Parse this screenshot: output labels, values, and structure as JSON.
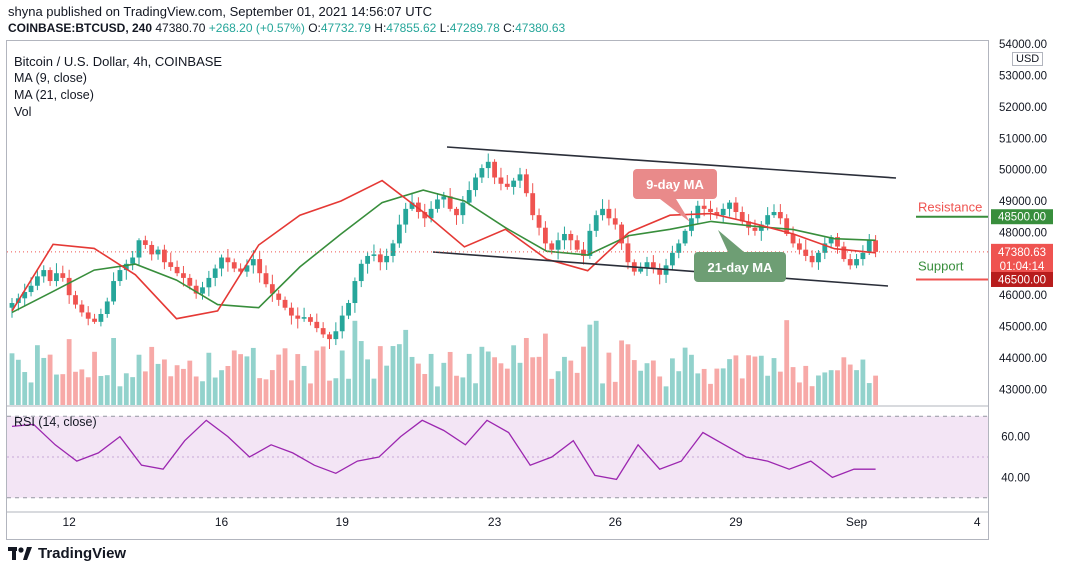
{
  "header": {
    "published": "shyna published on TradingView.com, September 01, 2021 14:56:07 UTC",
    "symbol": "COINBASE:BTCUSD, 240",
    "price": "47380.70",
    "change": "+268.20 (+0.57%)",
    "open_label": "O:",
    "open": "47732.79",
    "high_label": "H:",
    "high": "47855.62",
    "low_label": "L:",
    "low": "47289.78",
    "close_label": "C:",
    "close": "47380.63"
  },
  "legend": {
    "title": "Bitcoin / U.S. Dollar, 4h, COINBASE",
    "ma9": "MA (9, close)",
    "ma21": "MA (21, close)",
    "vol": "Vol",
    "rsi": "RSI (14, close)"
  },
  "currency": "USD",
  "annotations": {
    "ma9_label": "9-day MA",
    "ma21_label": "21-day MA",
    "resistance_label": "Resistance",
    "support_label": "Support",
    "resistance_level": "48500.00",
    "support_level": "46500.00",
    "last_price": "47380.63",
    "countdown": "01:04:14"
  },
  "footer": {
    "brand": "TradingView"
  },
  "colors": {
    "up": "#26a69a",
    "down": "#ef5350",
    "ma9": "#e53935",
    "ma21": "#388e3c",
    "rsi": "#9c27b0",
    "rsi_bg": "#f3e5f5"
  },
  "chart_data": {
    "type": "candlestick",
    "price_axis": {
      "ticks": [
        43000,
        44000,
        45000,
        46000,
        47000,
        48000,
        49000,
        50000,
        51000,
        52000,
        53000,
        54000
      ],
      "tick_labels": [
        "43000.00",
        "44000.00",
        "45000.00",
        "46000.00",
        "47000.00",
        "48000.00",
        "49000.00",
        "50000.00",
        "51000.00",
        "52000.00",
        "53000.00",
        "54000.00"
      ],
      "range": [
        42500,
        54100
      ]
    },
    "rsi_axis": {
      "ticks": [
        40,
        60
      ],
      "tick_labels": [
        "40.00",
        "60.00"
      ],
      "band": [
        30,
        70
      ],
      "range": [
        25,
        75
      ]
    },
    "time_axis": {
      "tick_labels": [
        "12",
        "16",
        "19",
        "23",
        "26",
        "29",
        "Sep",
        "4"
      ],
      "tick_bars": [
        9,
        33,
        52,
        76,
        95,
        114,
        133,
        152
      ]
    },
    "bars_per_day": 6,
    "closes": [
      45750,
      45900,
      46100,
      46300,
      46600,
      46800,
      46450,
      46700,
      46550,
      46000,
      45700,
      45450,
      45250,
      45150,
      45400,
      45800,
      46450,
      46800,
      47000,
      47200,
      47750,
      47600,
      47300,
      47450,
      47050,
      46900,
      46700,
      46550,
      46300,
      46050,
      46250,
      46550,
      46850,
      47200,
      47050,
      46850,
      46750,
      46950,
      47150,
      46700,
      46350,
      46050,
      45850,
      45600,
      45350,
      45250,
      45300,
      45150,
      44950,
      44750,
      44600,
      44850,
      45350,
      45750,
      46450,
      47000,
      47250,
      47300,
      47050,
      47250,
      47650,
      48250,
      48750,
      48950,
      48650,
      48450,
      48750,
      49050,
      49150,
      48750,
      48550,
      48950,
      49350,
      49750,
      50050,
      50250,
      49750,
      49550,
      49450,
      49650,
      49850,
      49250,
      48550,
      48150,
      47650,
      47450,
      47750,
      47950,
      47750,
      47450,
      47250,
      48050,
      48550,
      48750,
      48450,
      48250,
      47650,
      47050,
      46750,
      46850,
      47050,
      46850,
      46650,
      46950,
      47350,
      47650,
      48050,
      48450,
      48850,
      48750,
      48650,
      48550,
      48750,
      48950,
      48650,
      48350,
      48150,
      48050,
      48250,
      48550,
      48650,
      48450,
      47950,
      47650,
      47450,
      47250,
      47050,
      47350,
      47650,
      47850,
      47550,
      47150,
      46950,
      47150,
      47350,
      47750,
      47380
    ],
    "ma9_levels": [
      45500,
      47620,
      47490,
      46650,
      45250,
      45500,
      47600,
      48550,
      49000,
      49650,
      48650,
      47540,
      48100,
      47150,
      46780,
      48000,
      48550,
      48600,
      48300,
      47950,
      47480,
      47350
    ],
    "ma21_levels": [
      45450,
      46120,
      46800,
      46990,
      46480,
      45700,
      45600,
      46900,
      47950,
      48950,
      49350,
      49000,
      48150,
      47400,
      47280,
      47900,
      48100,
      48350,
      48200,
      48090,
      47800,
      47750
    ],
    "rsi_points": [
      65,
      66,
      56,
      48,
      52,
      60,
      46,
      44,
      58,
      68,
      60,
      50,
      56,
      52,
      46,
      42,
      48,
      50,
      60,
      68,
      63,
      56,
      68,
      62,
      46,
      50,
      58,
      41,
      39,
      56,
      44,
      48,
      62,
      56,
      50,
      48,
      44,
      48,
      40,
      44,
      44
    ]
  }
}
